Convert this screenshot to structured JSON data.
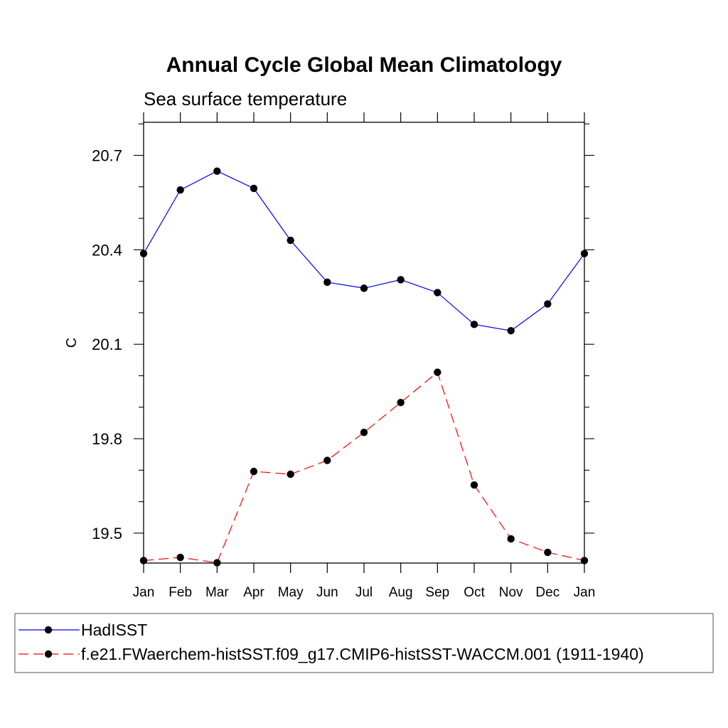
{
  "chart_data": {
    "type": "line",
    "title": "Annual Cycle Global Mean Climatology",
    "subtitle": "Sea surface temperature",
    "xlabel": "",
    "ylabel": "C",
    "categories": [
      "Jan",
      "Feb",
      "Mar",
      "Apr",
      "May",
      "Jun",
      "Jul",
      "Aug",
      "Sep",
      "Oct",
      "Nov",
      "Dec",
      "Jan"
    ],
    "ylim": [
      19.405,
      20.805
    ],
    "yticks": [
      "19.5",
      "19.8",
      "20.1",
      "20.4",
      "20.7"
    ],
    "grid": false,
    "legend_position": "bottom",
    "series": [
      {
        "name": "HadISST",
        "color": "#0000ff",
        "dash": "solid",
        "marker": "filled-circle",
        "values": [
          20.388,
          20.59,
          20.65,
          20.595,
          20.43,
          20.297,
          20.278,
          20.305,
          20.264,
          20.163,
          20.143,
          20.228,
          20.388
        ]
      },
      {
        "name": "f.e21.FWaerchem-histSST.f09_g17.CMIP6-histSST-WACCM.001 (1911-1940)",
        "color": "#ff0000",
        "dash": "dashed",
        "marker": "filled-circle",
        "values": [
          19.413,
          19.423,
          19.406,
          19.696,
          19.687,
          19.731,
          19.82,
          19.915,
          20.011,
          19.653,
          19.482,
          19.439,
          19.413
        ]
      }
    ]
  }
}
